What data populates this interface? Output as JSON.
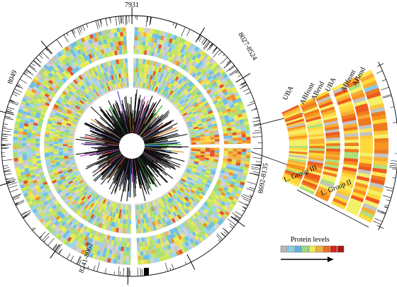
{
  "scale_labels": {
    "top": "7931",
    "top_right": "8027-8524",
    "left": "8049",
    "right": "8692-8135",
    "bottom": "8241-8062"
  },
  "inset": {
    "column_labels": [
      "UBA",
      "ABfront",
      "ABend",
      "UBA",
      "ABfront",
      "ABend"
    ],
    "group_labels": [
      "L. Group III",
      "L. Group II"
    ]
  },
  "legend": {
    "title": "Protein levels",
    "colors": [
      "#b8b8b8",
      "#8ecfe8",
      "#5fb4e0",
      "#9ddc7a",
      "#e9ee52",
      "#f6b233",
      "#ee6b1f",
      "#d9231d",
      "#a71b14"
    ]
  },
  "palette": {
    "heat": [
      "#c4c4c4",
      "#d2d2d2",
      "#9ad6ee",
      "#6fc0e6",
      "#8fd7b0",
      "#a9df72",
      "#c9e75e",
      "#e8ed57",
      "#f7d94a",
      "#f7b43a",
      "#f28d2c",
      "#e6532b"
    ],
    "inset_heat": [
      "#ffd83a",
      "#ffe65a",
      "#fcc93a",
      "#f9ab34",
      "#f7931f",
      "#ef7a1f",
      "#ee5b1f",
      "#f3f06a",
      "#c4c4c4",
      "#aee07a",
      "#86c9ea"
    ],
    "core_accents": [
      "#e63a7a",
      "#f08a2a",
      "#8b5ad1",
      "#3b8ad8",
      "#e04a4a",
      "#47b54a",
      "#d9b02a",
      "#c25fd6"
    ]
  }
}
